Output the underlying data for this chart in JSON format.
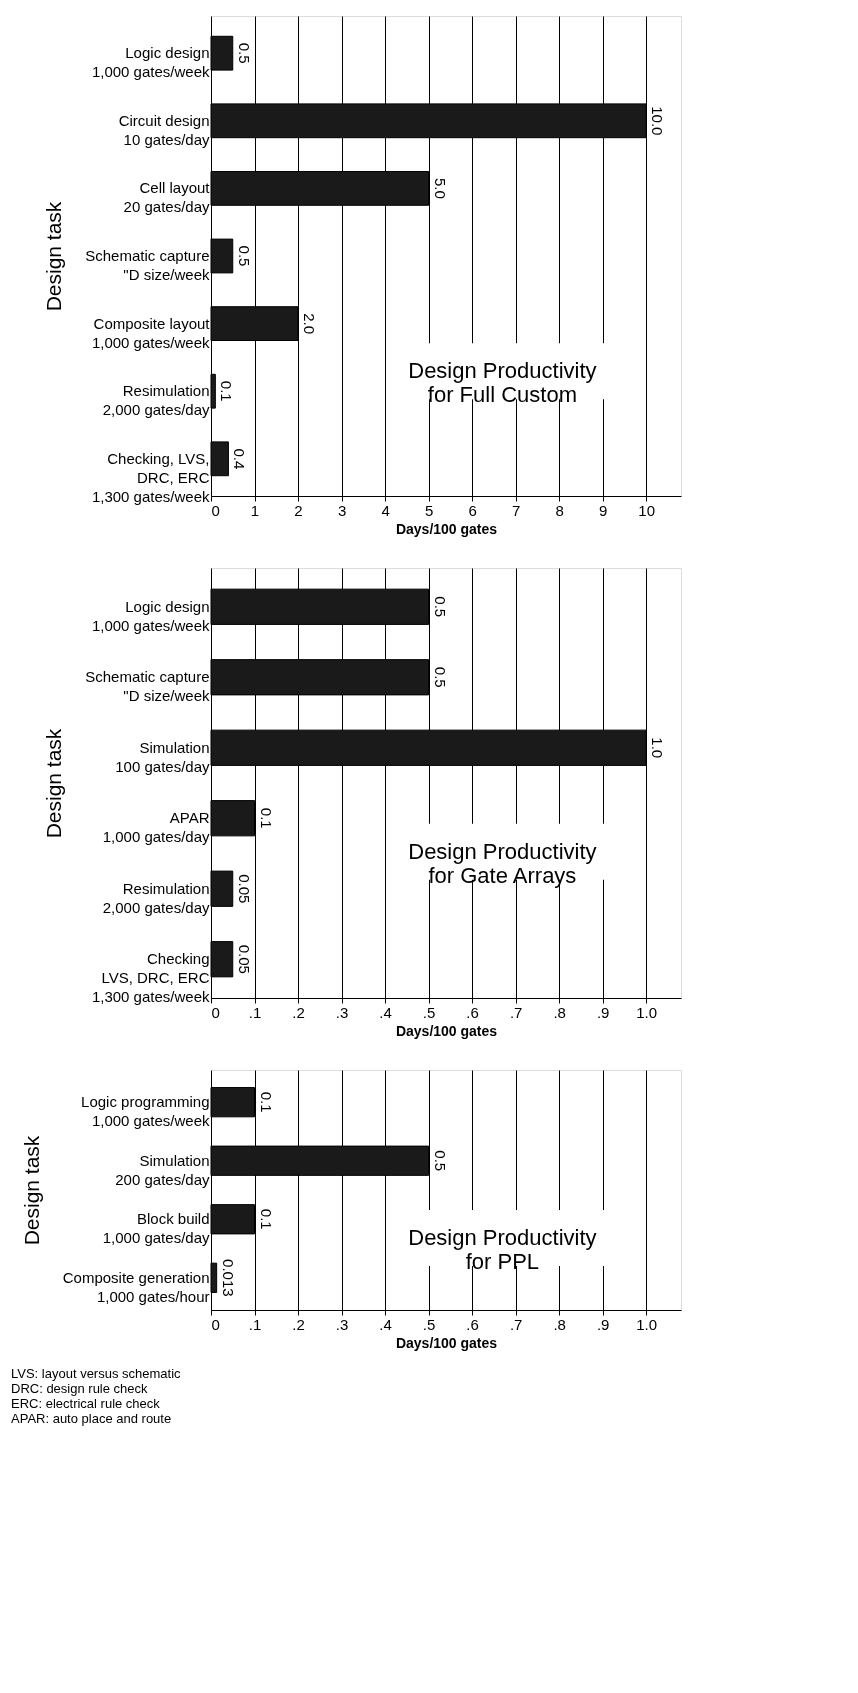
{
  "chart_data": [
    {
      "type": "bar",
      "orientation": "horizontal",
      "title": "Design Productivity\nfor Full Custom",
      "xlabel": "Days/100 gates",
      "ylabel": "Design task",
      "categories": [
        "Logic design\n1,000 gates/week",
        "Circuit design\n10 gates/day",
        "Cell layout\n20 gates/day",
        "Schematic capture\n\"D size/week",
        "Composite layout\n1,000 gates/week",
        "Resimulation\n2,000 gates/day",
        "Checking, LVS,\nDRC, ERC\n1,300 gates/week"
      ],
      "values": [
        0.5,
        10.0,
        5.0,
        0.5,
        2.0,
        0.1,
        0.4
      ],
      "value_labels": [
        "0.5",
        "10.0",
        "5.0",
        "0.5",
        "2.0",
        "0.1",
        "0.4"
      ],
      "color": "#1a1a1a",
      "xlim": [
        0,
        10.8
      ],
      "xticks": [
        0,
        1,
        2,
        3,
        4,
        5,
        6,
        7,
        8,
        9,
        10
      ],
      "grid": "x"
    },
    {
      "type": "bar",
      "orientation": "horizontal",
      "title": "Design Productivity\nfor Gate Arrays",
      "xlabel": "Days/100 gates",
      "ylabel": "Design task",
      "categories": [
        "Logic design\n1,000 gates/week",
        "Schematic capture\n\"D size/week",
        "Simulation\n100 gates/day",
        "APAR\n1,000 gates/day",
        "Resimulation\n2,000 gates/day",
        "Checking\nLVS, DRC, ERC\n1,300 gates/week"
      ],
      "values": [
        0.5,
        0.5,
        1.0,
        0.1,
        0.05,
        0.05
      ],
      "value_labels": [
        "0.5",
        "0.5",
        "1.0",
        "0.1",
        "0.05",
        "0.05"
      ],
      "color": "#1a1a1a",
      "xlim": [
        0,
        1.08
      ],
      "xticks": [
        {
          "value": 0,
          "label": "0"
        },
        {
          "value": 0.1,
          "label": ".1"
        },
        {
          "value": 0.2,
          "label": ".2"
        },
        {
          "value": 0.3,
          "label": ".3"
        },
        {
          "value": 0.4,
          "label": ".4"
        },
        {
          "value": 0.5,
          "label": ".5"
        },
        {
          "value": 0.6,
          "label": ".6"
        },
        {
          "value": 0.7,
          "label": ".7"
        },
        {
          "value": 0.8,
          "label": ".8"
        },
        {
          "value": 0.9,
          "label": ".9"
        },
        {
          "value": 1.0,
          "label": "1.0"
        }
      ],
      "grid": "x"
    },
    {
      "type": "bar",
      "orientation": "horizontal",
      "title": "Design Productivity\nfor PPL",
      "xlabel": "Days/100 gates",
      "ylabel": "Design task",
      "categories": [
        "Logic programming\n1,000 gates/week",
        "Simulation\n200 gates/day",
        "Block build\n1,000 gates/day",
        "Composite generation\n1,000 gates/hour"
      ],
      "values": [
        0.1,
        0.5,
        0.1,
        0.013
      ],
      "value_labels": [
        "0.1",
        "0.5",
        "0.1",
        "0.013"
      ],
      "color": "#1a1a1a",
      "xlim": [
        0,
        1.08
      ],
      "xticks": [
        {
          "value": 0,
          "label": "0"
        },
        {
          "value": 0.1,
          "label": ".1"
        },
        {
          "value": 0.2,
          "label": ".2"
        },
        {
          "value": 0.3,
          "label": ".3"
        },
        {
          "value": 0.4,
          "label": ".4"
        },
        {
          "value": 0.5,
          "label": ".5"
        },
        {
          "value": 0.6,
          "label": ".6"
        },
        {
          "value": 0.7,
          "label": ".7"
        },
        {
          "value": 0.8,
          "label": ".8"
        },
        {
          "value": 0.9,
          "label": ".9"
        },
        {
          "value": 1.0,
          "label": "1.0"
        }
      ],
      "grid": "x",
      "annotations": [
        "LVS: layout versus schematic",
        "DRC: design rule check",
        "ERC: electrical rule check",
        "APAR: auto place and route"
      ]
    }
  ]
}
